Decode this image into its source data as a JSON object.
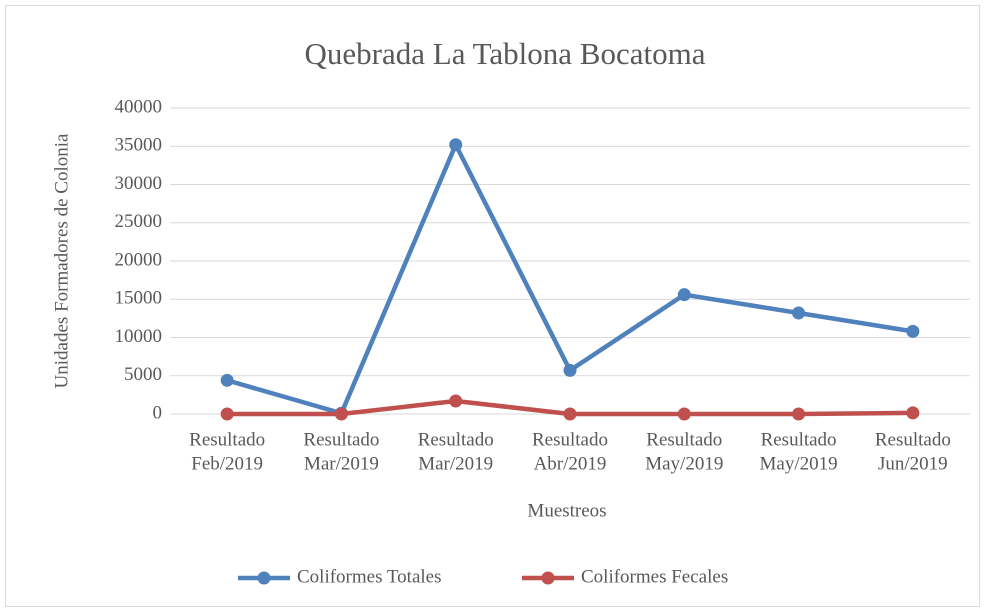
{
  "chart_data": {
    "type": "line",
    "title": "Quebrada La Tablona Bocatoma",
    "y_label": "Unidades Formadores de Colonia",
    "x_label": "Muestreos",
    "categories": [
      [
        "Resultado",
        "Feb/2019"
      ],
      [
        "Resultado",
        "Mar/2019"
      ],
      [
        "Resultado",
        "Mar/2019"
      ],
      [
        "Resultado",
        "Abr/2019"
      ],
      [
        "Resultado",
        "May/2019"
      ],
      [
        "Resultado",
        "May/2019"
      ],
      [
        "Resultado",
        "Jun/2019"
      ]
    ],
    "series": [
      {
        "name": "Coliformes Totales",
        "color": "#4f81bd",
        "values": [
          4400,
          100,
          35200,
          5700,
          15600,
          13200,
          10800
        ]
      },
      {
        "name": "Coliformes Fecales",
        "color": "#c0504d",
        "values": [
          0,
          0,
          1700,
          0,
          0,
          0,
          150
        ]
      }
    ],
    "ylim": [
      0,
      40000
    ],
    "yticks": [
      0,
      5000,
      10000,
      15000,
      20000,
      25000,
      30000,
      35000,
      40000
    ],
    "grid": true,
    "legend": "bottom"
  }
}
